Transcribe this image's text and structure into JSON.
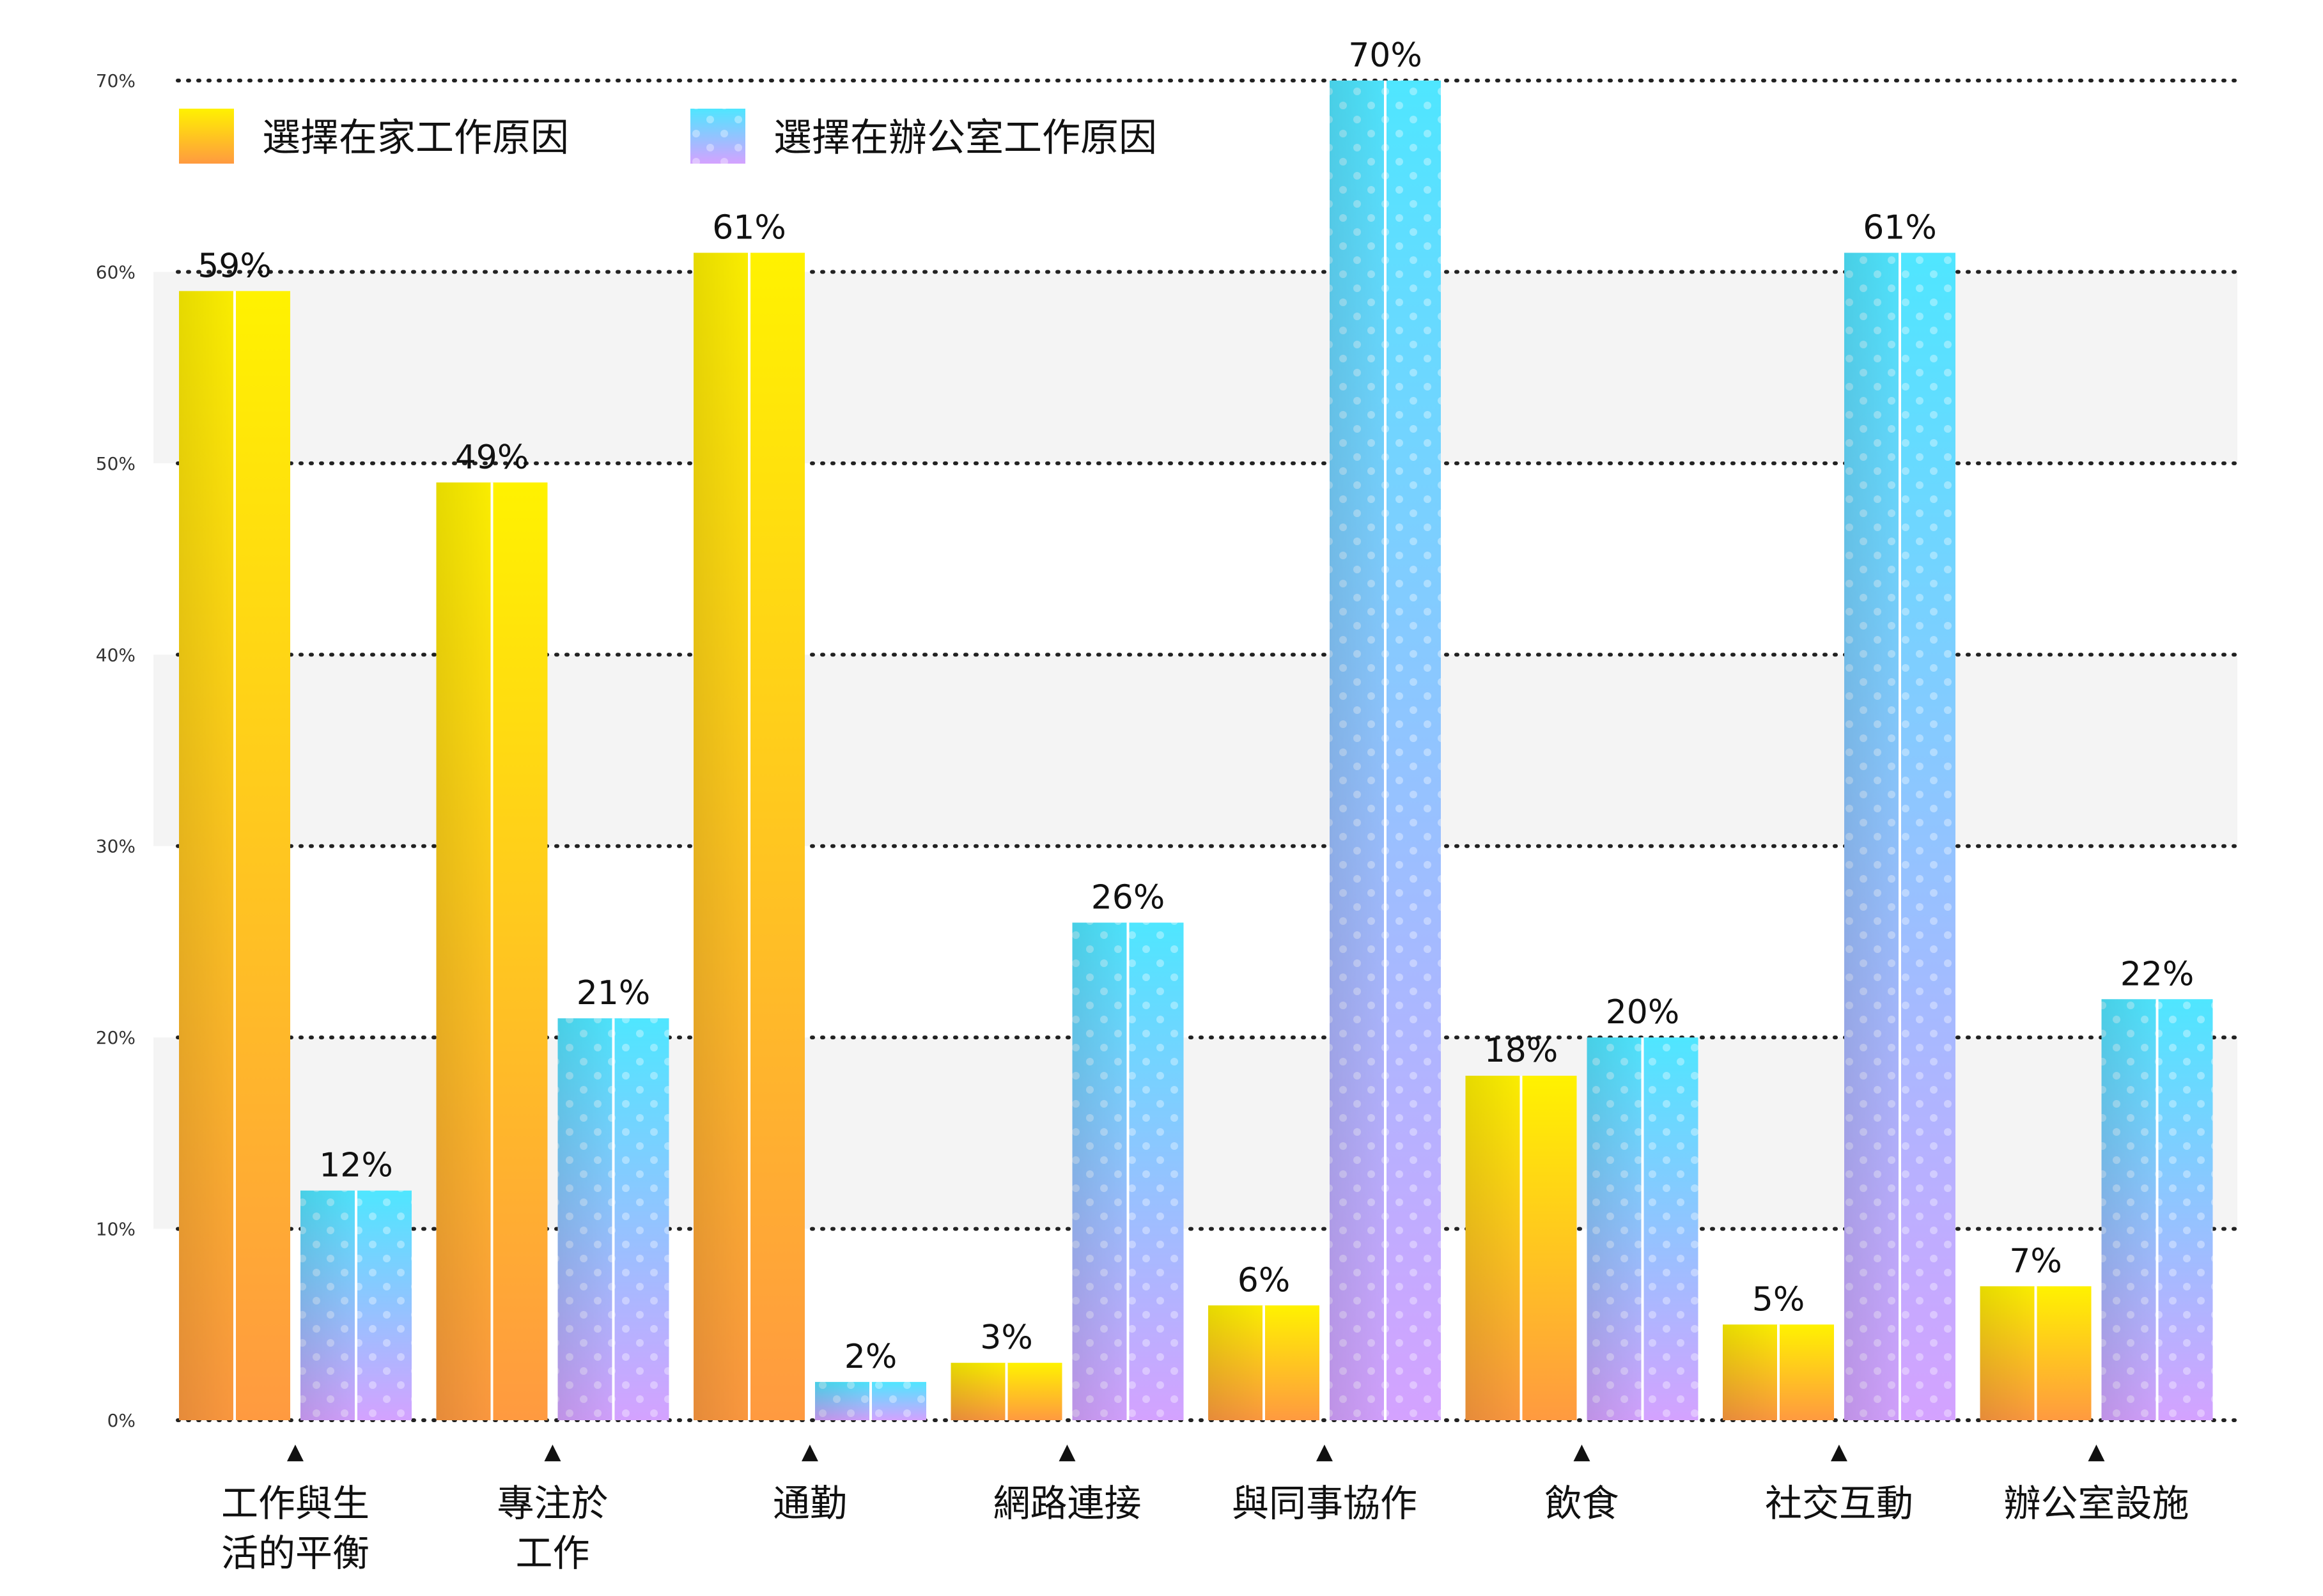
{
  "colors": {
    "home_top": "#FFF200",
    "home_bottom": "#FF9A40",
    "office_top": "#4FE6FF",
    "office_bottom": "#D4A2FF",
    "band": "#F4F4F4",
    "grid": "#222222",
    "text": "#111111",
    "axis_text": "#333333"
  },
  "chart_data": {
    "type": "bar",
    "categories": [
      [
        "工作與生",
        "活的平衡"
      ],
      [
        "專注於",
        "工作"
      ],
      [
        "通勤"
      ],
      [
        "網路連接"
      ],
      [
        "與同事協作"
      ],
      [
        "飲食"
      ],
      [
        "社交互動"
      ],
      [
        "辦公室設施"
      ]
    ],
    "series": [
      {
        "name": "選擇在家工作原因",
        "values": [
          59,
          49,
          61,
          3,
          6,
          18,
          5,
          7
        ],
        "labels": [
          "59%",
          "49%",
          "61%",
          "3%",
          "6%",
          "18%",
          "5%",
          "7%"
        ]
      },
      {
        "name": "選擇在辦公室工作原因",
        "values": [
          12,
          21,
          2,
          26,
          70,
          20,
          61,
          22
        ],
        "labels": [
          "12%",
          "21%",
          "2%",
          "26%",
          "70%",
          "20%",
          "61%",
          "22%"
        ]
      }
    ],
    "yticks": [
      0,
      10,
      20,
      30,
      40,
      50,
      60,
      70
    ],
    "ytick_labels": [
      "0%",
      "10%",
      "20%",
      "30%",
      "40%",
      "50%",
      "60%",
      "70%"
    ],
    "ylim": [
      0,
      70
    ],
    "grid": true,
    "legend_position": "top-left",
    "marker_glyph": "▲"
  }
}
